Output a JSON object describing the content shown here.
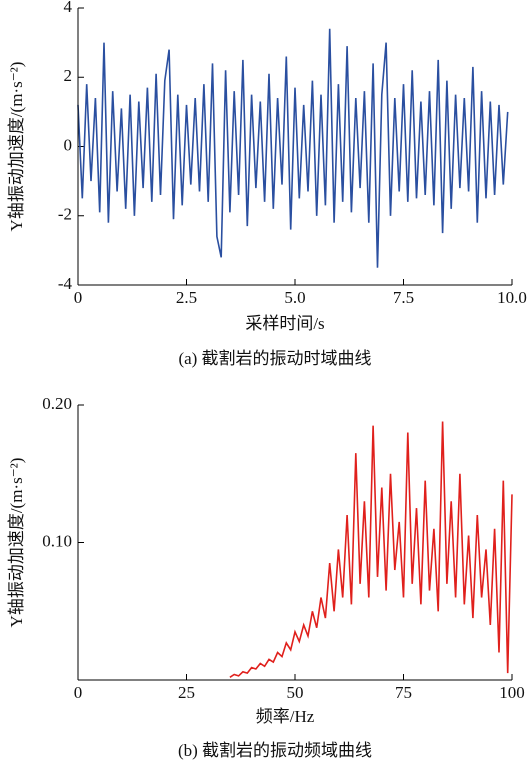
{
  "chart_data": [
    {
      "type": "line",
      "ylabel": "Y轴振动加速度/(m·s⁻²)",
      "xlabel": "采样时间/s",
      "caption": "(a) 截割岩的振动时域曲线",
      "color": "#2a4fa0",
      "xlim": [
        0,
        10
      ],
      "xticks": [
        0,
        2.5,
        {
          "value": 5,
          "label": "5.0"
        },
        7.5,
        {
          "value": 10,
          "label": "10.0"
        }
      ],
      "ylim": [
        -4,
        4
      ],
      "yticks": [
        -4,
        -2,
        0,
        2,
        4
      ],
      "x": [
        0,
        0.1,
        0.2,
        0.3,
        0.4,
        0.5,
        0.6,
        0.7,
        0.8,
        0.9,
        1,
        1.1,
        1.2,
        1.3,
        1.4,
        1.5,
        1.6,
        1.7,
        1.8,
        1.9,
        2,
        2.1,
        2.2,
        2.3,
        2.4,
        2.5,
        2.6,
        2.7,
        2.8,
        2.9,
        3,
        3.1,
        3.2,
        3.3,
        3.4,
        3.5,
        3.6,
        3.7,
        3.8,
        3.9,
        4,
        4.1,
        4.2,
        4.3,
        4.4,
        4.5,
        4.6,
        4.7,
        4.8,
        4.9,
        5,
        5.1,
        5.2,
        5.3,
        5.4,
        5.5,
        5.6,
        5.7,
        5.8,
        5.9,
        6,
        6.1,
        6.2,
        6.3,
        6.4,
        6.5,
        6.6,
        6.7,
        6.8,
        6.9,
        7,
        7.1,
        7.2,
        7.3,
        7.4,
        7.5,
        7.6,
        7.7,
        7.8,
        7.9,
        8,
        8.1,
        8.2,
        8.3,
        8.4,
        8.5,
        8.6,
        8.7,
        8.8,
        8.9,
        9,
        9.1,
        9.2,
        9.3,
        9.4,
        9.5,
        9.6,
        9.7,
        9.8,
        9.9
      ],
      "values": [
        1.2,
        -1.5,
        1.8,
        -1.0,
        1.4,
        -1.9,
        3.0,
        -2.2,
        1.6,
        -1.3,
        1.1,
        -1.8,
        1.5,
        -2.0,
        1.3,
        -1.2,
        1.7,
        -1.6,
        2.1,
        -1.4,
        1.9,
        2.8,
        -2.1,
        1.5,
        -1.7,
        1.2,
        -1.1,
        1.4,
        -1.3,
        1.8,
        -1.6,
        2.4,
        -2.6,
        -3.2,
        2.2,
        -1.9,
        1.6,
        -1.4,
        2.5,
        -2.3,
        1.5,
        -1.2,
        1.3,
        -1.6,
        2.1,
        -1.8,
        1.4,
        -1.1,
        2.6,
        -2.4,
        1.7,
        -1.5,
        1.2,
        -1.3,
        1.9,
        -2.0,
        1.5,
        -1.7,
        3.4,
        -2.2,
        1.8,
        -1.6,
        2.9,
        -1.9,
        1.4,
        -1.2,
        1.6,
        -2.2,
        2.4,
        -3.5,
        1.5,
        3.0,
        -2.0,
        1.4,
        -1.3,
        1.8,
        -1.6,
        2.2,
        -1.5,
        1.3,
        -1.4,
        1.6,
        -1.7,
        2.5,
        -2.5,
        1.9,
        -1.8,
        1.5,
        -1.2,
        1.4,
        -1.3,
        2.3,
        -2.2,
        1.6,
        -1.5,
        1.3,
        -1.4,
        1.2,
        -1.1,
        1.0
      ]
    },
    {
      "type": "line",
      "ylabel": "Y轴振动加速度/(m·s⁻²)",
      "xlabel": "频率/Hz",
      "caption": "(b) 截割岩的振动频域曲线",
      "color": "#e0201c",
      "xlim": [
        0,
        100
      ],
      "xticks": [
        0,
        25,
        50,
        75,
        100
      ],
      "ylim": [
        0,
        0.2
      ],
      "yticks": [
        {
          "value": 0.1,
          "label": "0.10"
        },
        {
          "value": 0.2,
          "label": "0.20"
        }
      ],
      "x": [
        35,
        36,
        37,
        38,
        39,
        40,
        41,
        42,
        43,
        44,
        45,
        46,
        47,
        48,
        49,
        50,
        51,
        52,
        53,
        54,
        55,
        56,
        57,
        58,
        59,
        60,
        61,
        62,
        63,
        64,
        65,
        66,
        67,
        68,
        69,
        70,
        71,
        72,
        73,
        74,
        75,
        76,
        77,
        78,
        79,
        80,
        81,
        82,
        83,
        84,
        85,
        86,
        87,
        88,
        89,
        90,
        91,
        92,
        93,
        94,
        95,
        96,
        97,
        98,
        99,
        100
      ],
      "values": [
        0.002,
        0.004,
        0.003,
        0.006,
        0.005,
        0.009,
        0.008,
        0.012,
        0.01,
        0.015,
        0.013,
        0.02,
        0.017,
        0.027,
        0.022,
        0.035,
        0.028,
        0.04,
        0.032,
        0.05,
        0.038,
        0.06,
        0.045,
        0.085,
        0.05,
        0.095,
        0.06,
        0.12,
        0.055,
        0.165,
        0.07,
        0.13,
        0.06,
        0.185,
        0.075,
        0.14,
        0.065,
        0.15,
        0.08,
        0.115,
        0.06,
        0.18,
        0.07,
        0.125,
        0.055,
        0.145,
        0.065,
        0.11,
        0.05,
        0.188,
        0.07,
        0.13,
        0.06,
        0.15,
        0.055,
        0.105,
        0.045,
        0.12,
        0.06,
        0.095,
        0.04,
        0.11,
        0.02,
        0.145,
        0.005,
        0.135
      ]
    }
  ]
}
